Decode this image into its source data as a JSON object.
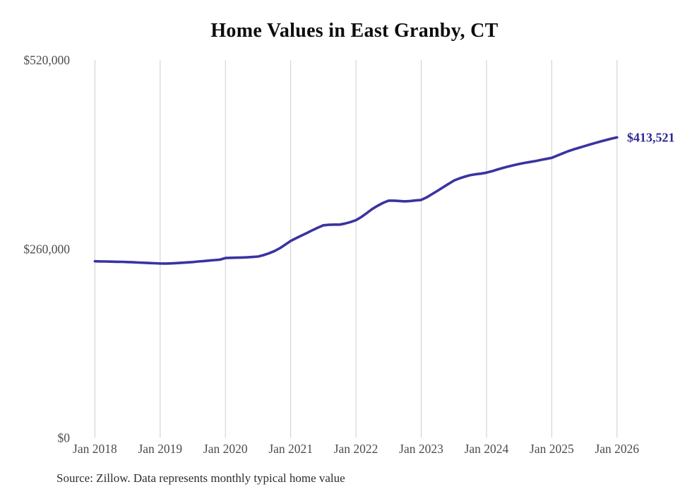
{
  "page": {
    "background": "#ffffff",
    "source_note": "Source: Zillow. Data represents monthly typical home value"
  },
  "chart_data": {
    "type": "line",
    "title": "Home Values in East Granby, CT",
    "xlabel": "",
    "ylabel": "",
    "x_unit": "month",
    "x_range": [
      "Jan 2018",
      "Jan 2026"
    ],
    "x_tick_labels": [
      "Jan 2018",
      "Jan 2019",
      "Jan 2020",
      "Jan 2021",
      "Jan 2022",
      "Jan 2023",
      "Jan 2024",
      "Jan 2025",
      "Jan 2026"
    ],
    "y_ticks": [
      {
        "label": "$0",
        "value": 0
      },
      {
        "label": "$260,000",
        "value": 260000
      },
      {
        "label": "$520,000",
        "value": 520000
      }
    ],
    "ylim": [
      0,
      520000
    ],
    "grid": "vertical-only",
    "legend": "none",
    "end_label": "$413,521",
    "colors": {
      "line": "#3a33a0",
      "end_label": "#2c2894",
      "grid": "#cdcdcd",
      "axis_text": "#4d4d4d",
      "title_text": "#0d0d0d",
      "source_text": "#2e2e2e",
      "background": "#ffffff"
    },
    "series": [
      {
        "name": "Typical home value",
        "color": "#3a33a0",
        "values": [
          243000,
          242800,
          242700,
          242500,
          242300,
          242200,
          242000,
          241700,
          241300,
          241000,
          240600,
          240300,
          240000,
          239900,
          240100,
          240500,
          241000,
          241500,
          242000,
          242700,
          243300,
          244000,
          244700,
          245300,
          247500,
          247800,
          248000,
          248200,
          248500,
          249000,
          249500,
          251500,
          254000,
          257000,
          261000,
          266000,
          271000,
          274800,
          278500,
          282000,
          285800,
          289300,
          292500,
          293200,
          293500,
          293500,
          295000,
          297000,
          299500,
          304000,
          309500,
          315000,
          319500,
          323500,
          326500,
          326500,
          326000,
          325500,
          326000,
          326800,
          327500,
          331000,
          335500,
          340000,
          344800,
          349500,
          354000,
          357000,
          359500,
          361500,
          362800,
          363700,
          365000,
          367000,
          369300,
          371500,
          373500,
          375300,
          377000,
          378400,
          379700,
          381000,
          382500,
          384000,
          385500,
          388500,
          391500,
          394500,
          397000,
          399300,
          401500,
          403700,
          405900,
          408000,
          410000,
          411900,
          413521
        ]
      }
    ]
  }
}
